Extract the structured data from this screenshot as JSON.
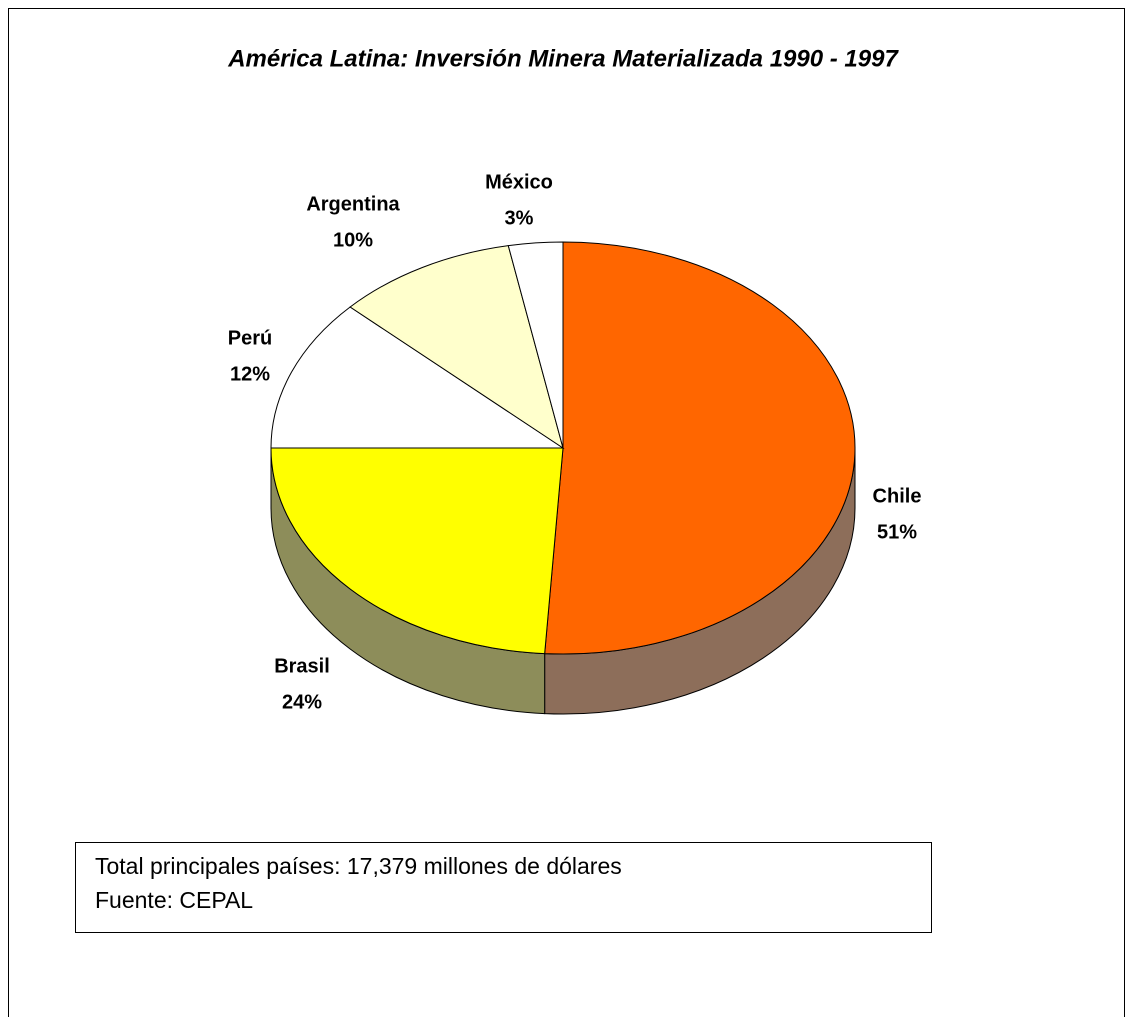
{
  "chart_data": {
    "type": "pie3d",
    "title": "América Latina: Inversión Minera Materializada 1990 - 1997",
    "categories": [
      "Chile",
      "Brasil",
      "Perú",
      "Argentina",
      "México"
    ],
    "values": [
      51,
      24,
      12,
      10,
      3
    ],
    "value_labels": [
      "51%",
      "24%",
      "12%",
      "10%",
      "3%"
    ],
    "colors": [
      "#ff6600",
      "#ffff00",
      "#ffffff",
      "#ffffcc",
      "#ffffff"
    ],
    "annotations": [
      "Total principales países: 17,379 millones de dólares",
      "Fuente: CEPAL"
    ]
  }
}
